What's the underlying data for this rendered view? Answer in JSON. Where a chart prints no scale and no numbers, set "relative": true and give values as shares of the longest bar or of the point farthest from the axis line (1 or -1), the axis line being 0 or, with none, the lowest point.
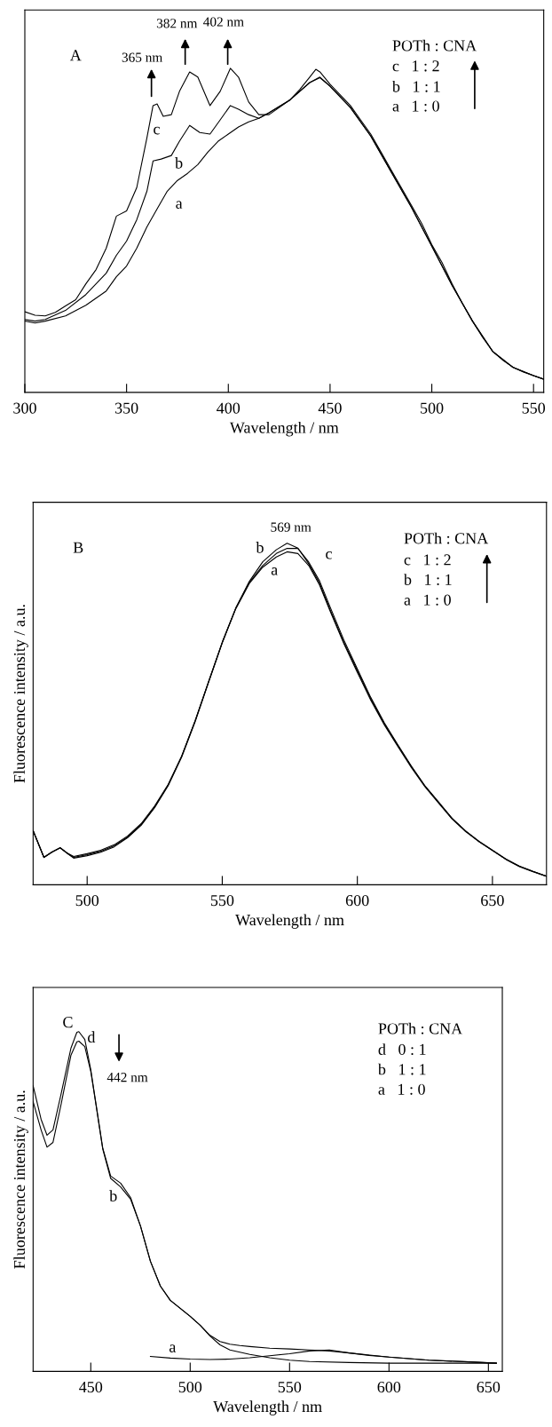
{
  "chart_data": [
    {
      "type": "line",
      "relative": true,
      "xlabel": "Wavelength / nm",
      "xlim": [
        300,
        555
      ],
      "xticks": [
        300,
        350,
        400,
        450,
        500,
        550
      ],
      "annotations": [
        "A",
        "POTh : CNA",
        "c   1 : 2",
        "b   1 : 1",
        "a   1 : 0",
        "365 nm",
        "382 nm",
        "402 nm",
        "c",
        "b",
        "a"
      ],
      "series": [
        {
          "color": "#000000",
          "x": [
            300,
            305,
            310,
            315,
            320,
            325,
            330,
            335,
            340,
            345,
            350,
            355,
            360,
            363,
            365,
            368,
            372,
            376,
            381,
            385,
            391,
            396,
            401,
            405,
            410,
            415,
            420,
            425,
            430,
            435,
            440,
            443,
            445,
            450,
            455,
            460,
            465,
            470,
            475,
            480,
            485,
            490,
            495,
            500,
            505,
            510,
            515,
            520,
            525,
            530,
            535,
            540,
            545,
            550,
            555
          ],
          "values": [
            0.249,
            0.238,
            0.236,
            0.247,
            0.267,
            0.286,
            0.335,
            0.379,
            0.445,
            0.544,
            0.56,
            0.632,
            0.786,
            0.885,
            0.89,
            0.852,
            0.857,
            0.929,
            0.989,
            0.973,
            0.885,
            0.929,
            1.0,
            0.973,
            0.896,
            0.857,
            0.857,
            0.879,
            0.901,
            0.934,
            0.973,
            0.997,
            0.989,
            0.951,
            0.918,
            0.885,
            0.841,
            0.797,
            0.742,
            0.687,
            0.632,
            0.577,
            0.522,
            0.456,
            0.401,
            0.335,
            0.275,
            0.22,
            0.17,
            0.126,
            0.099,
            0.077,
            0.063,
            0.052,
            0.041
          ]
        },
        {
          "color": "#000000",
          "x": [
            300,
            305,
            310,
            320,
            330,
            340,
            345,
            350,
            355,
            360,
            363,
            367,
            372,
            376,
            381,
            386,
            391,
            396,
            401,
            405,
            410,
            415,
            420,
            430,
            440,
            445,
            450,
            460,
            470,
            480,
            490,
            500,
            510,
            520,
            530,
            540,
            550,
            555
          ],
          "values": [
            0.225,
            0.22,
            0.225,
            0.253,
            0.302,
            0.368,
            0.423,
            0.467,
            0.533,
            0.621,
            0.714,
            0.72,
            0.731,
            0.775,
            0.824,
            0.802,
            0.797,
            0.841,
            0.885,
            0.874,
            0.857,
            0.846,
            0.863,
            0.901,
            0.956,
            0.973,
            0.945,
            0.879,
            0.791,
            0.681,
            0.571,
            0.451,
            0.33,
            0.22,
            0.126,
            0.077,
            0.052,
            0.041
          ]
        },
        {
          "color": "#000000",
          "x": [
            300,
            305,
            310,
            320,
            330,
            340,
            345,
            350,
            355,
            360,
            365,
            370,
            375,
            380,
            385,
            390,
            395,
            400,
            405,
            410,
            415,
            420,
            430,
            440,
            445,
            450,
            460,
            470,
            480,
            490,
            500,
            510,
            520,
            530,
            540,
            550,
            555
          ],
          "values": [
            0.22,
            0.214,
            0.22,
            0.236,
            0.269,
            0.313,
            0.357,
            0.39,
            0.445,
            0.511,
            0.566,
            0.621,
            0.654,
            0.676,
            0.703,
            0.742,
            0.775,
            0.797,
            0.819,
            0.835,
            0.846,
            0.863,
            0.901,
            0.956,
            0.971,
            0.945,
            0.879,
            0.791,
            0.681,
            0.571,
            0.451,
            0.33,
            0.22,
            0.126,
            0.077,
            0.052,
            0.041
          ]
        }
      ]
    },
    {
      "type": "line",
      "relative": true,
      "xlabel": "Wavelength / nm",
      "ylabel": "Fluorescence intensity / a.u.",
      "xlim": [
        480,
        670
      ],
      "xticks": [
        500,
        550,
        600,
        650
      ],
      "annotations": [
        "B",
        "POTh : CNA",
        "c   1 : 2",
        "b   1 : 1",
        "a   1 : 0",
        "569 nm",
        "b",
        "a",
        "c"
      ],
      "series": [
        {
          "color": "#000000",
          "x": [
            480,
            484,
            487,
            490,
            493,
            495,
            500,
            505,
            510,
            515,
            520,
            525,
            530,
            535,
            540,
            545,
            550,
            555,
            560,
            565,
            570,
            574,
            578,
            582,
            586,
            590,
            595,
            600,
            605,
            610,
            615,
            620,
            625,
            630,
            635,
            640,
            645,
            650,
            655,
            660,
            665,
            670
          ],
          "values": [
            0.158,
            0.08,
            0.096,
            0.108,
            0.091,
            0.083,
            0.091,
            0.101,
            0.117,
            0.143,
            0.179,
            0.231,
            0.294,
            0.377,
            0.481,
            0.596,
            0.71,
            0.81,
            0.888,
            0.946,
            0.981,
            1.0,
            0.986,
            0.94,
            0.883,
            0.804,
            0.71,
            0.627,
            0.544,
            0.471,
            0.408,
            0.346,
            0.289,
            0.242,
            0.195,
            0.158,
            0.127,
            0.101,
            0.075,
            0.054,
            0.039,
            0.025
          ]
        },
        {
          "color": "#000000",
          "x": [
            480,
            484,
            487,
            490,
            493,
            495,
            500,
            505,
            510,
            515,
            520,
            525,
            530,
            535,
            540,
            545,
            550,
            555,
            560,
            565,
            570,
            574,
            578,
            582,
            586,
            590,
            595,
            600,
            605,
            610,
            615,
            620,
            625,
            630,
            635,
            640,
            645,
            650,
            655,
            660,
            665,
            670
          ],
          "values": [
            0.158,
            0.08,
            0.096,
            0.108,
            0.09,
            0.08,
            0.088,
            0.098,
            0.114,
            0.14,
            0.176,
            0.228,
            0.292,
            0.377,
            0.481,
            0.596,
            0.71,
            0.81,
            0.885,
            0.935,
            0.97,
            0.985,
            0.985,
            0.945,
            0.89,
            0.812,
            0.717,
            0.632,
            0.548,
            0.474,
            0.41,
            0.347,
            0.29,
            0.243,
            0.195,
            0.158,
            0.127,
            0.101,
            0.075,
            0.054,
            0.039,
            0.025
          ]
        },
        {
          "color": "#000000",
          "x": [
            480,
            484,
            487,
            490,
            493,
            495,
            500,
            505,
            510,
            515,
            520,
            525,
            530,
            535,
            540,
            545,
            550,
            555,
            560,
            565,
            570,
            574,
            578,
            582,
            586,
            590,
            595,
            600,
            605,
            610,
            615,
            620,
            625,
            630,
            635,
            640,
            645,
            650,
            655,
            660,
            665,
            670
          ],
          "values": [
            0.158,
            0.08,
            0.096,
            0.108,
            0.09,
            0.078,
            0.085,
            0.095,
            0.111,
            0.138,
            0.174,
            0.226,
            0.29,
            0.374,
            0.478,
            0.594,
            0.708,
            0.808,
            0.882,
            0.93,
            0.96,
            0.975,
            0.97,
            0.935,
            0.878,
            0.8,
            0.706,
            0.622,
            0.54,
            0.468,
            0.405,
            0.343,
            0.287,
            0.24,
            0.193,
            0.156,
            0.126,
            0.1,
            0.074,
            0.053,
            0.038,
            0.025
          ]
        }
      ]
    },
    {
      "type": "line",
      "relative": true,
      "xlabel": "Wavelength / nm",
      "ylabel": "Fluorescence intensity / a.u.",
      "xlim": [
        421,
        657
      ],
      "xticks": [
        450,
        500,
        550,
        600,
        650
      ],
      "annotations": [
        "C",
        "POTh : CNA",
        "d   0 : 1",
        "b   1 : 1",
        "a   1 : 0",
        "442 nm",
        "d",
        "b",
        "a"
      ],
      "series": [
        {
          "color": "#000000",
          "x": [
            421,
            425,
            428,
            431,
            435,
            440,
            443,
            444,
            447,
            450,
            453,
            456,
            460,
            465,
            470,
            475,
            480,
            485,
            490,
            500,
            505,
            510,
            515,
            520,
            530,
            540,
            550,
            560,
            580,
            600,
            620,
            654
          ],
          "values": [
            0.841,
            0.742,
            0.695,
            0.711,
            0.815,
            0.951,
            0.998,
            1.0,
            0.977,
            0.888,
            0.773,
            0.658,
            0.575,
            0.554,
            0.512,
            0.428,
            0.324,
            0.251,
            0.209,
            0.162,
            0.136,
            0.104,
            0.078,
            0.063,
            0.05,
            0.04,
            0.033,
            0.029,
            0.026,
            0.024,
            0.024,
            0.024
          ]
        },
        {
          "color": "#000000",
          "x": [
            421,
            425,
            428,
            431,
            435,
            440,
            443,
            444,
            447,
            450,
            453,
            456,
            460,
            465,
            470,
            475,
            480,
            485,
            490,
            500,
            505,
            510,
            515,
            520,
            525,
            530,
            540,
            550,
            560,
            570,
            580,
            600,
            620,
            640,
            654
          ],
          "values": [
            0.794,
            0.711,
            0.66,
            0.674,
            0.784,
            0.93,
            0.97,
            0.972,
            0.956,
            0.883,
            0.77,
            0.655,
            0.568,
            0.543,
            0.507,
            0.428,
            0.324,
            0.251,
            0.209,
            0.162,
            0.136,
            0.106,
            0.088,
            0.08,
            0.076,
            0.073,
            0.068,
            0.066,
            0.063,
            0.06,
            0.054,
            0.042,
            0.033,
            0.028,
            0.024
          ]
        },
        {
          "color": "#000000",
          "x": [
            480,
            490,
            500,
            510,
            520,
            530,
            540,
            550,
            560,
            570,
            580,
            590,
            600,
            620,
            640,
            654
          ],
          "values": [
            0.044,
            0.039,
            0.036,
            0.035,
            0.036,
            0.04,
            0.046,
            0.052,
            0.06,
            0.063,
            0.054,
            0.047,
            0.042,
            0.033,
            0.028,
            0.024
          ]
        }
      ]
    }
  ]
}
